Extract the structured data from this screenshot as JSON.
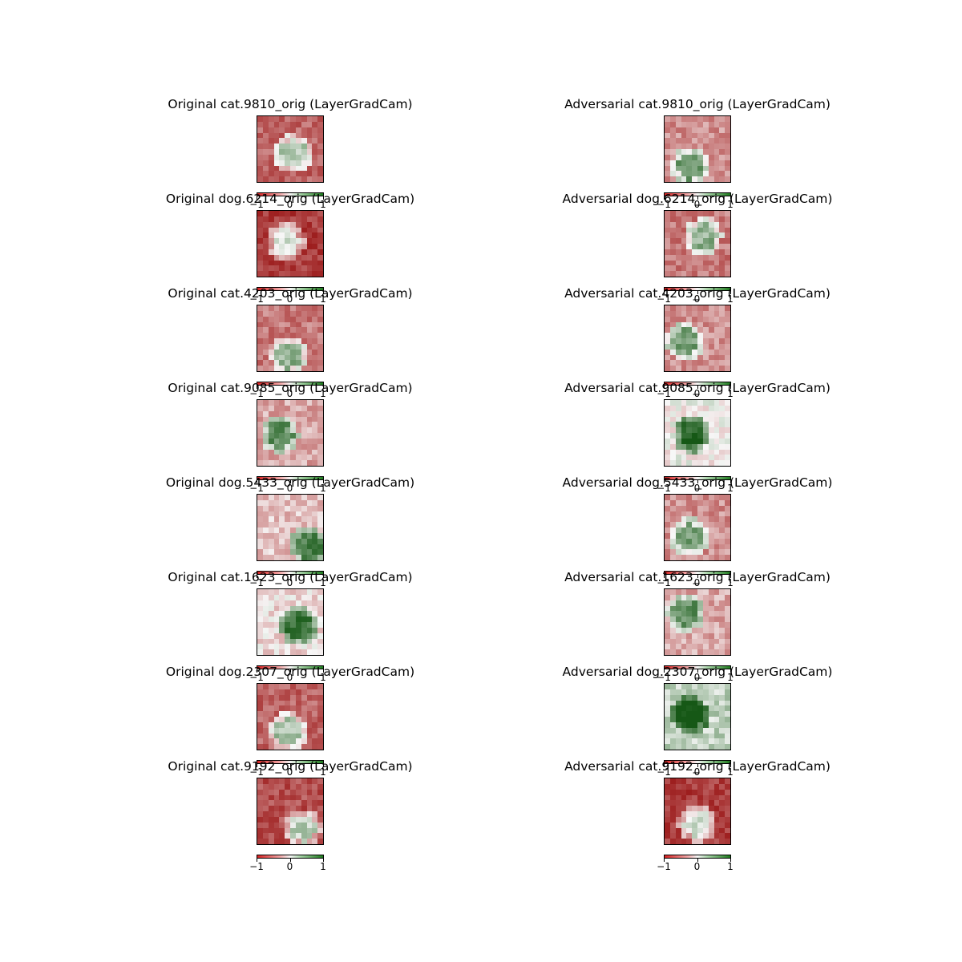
{
  "chart_data": {
    "type": "heatmap",
    "colormap": {
      "low_color": "#d62222",
      "mid_color": "#f7f7f7",
      "high_color": "#1e7a1e",
      "range": [
        -1,
        1
      ]
    },
    "colorbar_ticks": [
      "−1",
      "0",
      "1"
    ],
    "columns": [
      {
        "name": "Original",
        "titles": [
          "Original cat.9810_orig (LayerGradCam)",
          "Original dog.6214_orig (LayerGradCam)",
          "Original cat.4203_orig (LayerGradCam)",
          "Original cat.9085_orig (LayerGradCam)",
          "Original dog.5433_orig (LayerGradCam)",
          "Original cat.1623_orig (LayerGradCam)",
          "Original dog.2307_orig (LayerGradCam)",
          "Original cat.9192_orig (LayerGradCam)"
        ]
      },
      {
        "name": "Adversarial",
        "titles": [
          "Adversarial cat.9810_orig (LayerGradCam)",
          "Adversarial dog.6214_orig (LayerGradCam)",
          "Adversarial cat.4203_orig (LayerGradCam)",
          "Adversarial cat.9085_orig (LayerGradCam)",
          "Adversarial dog.5433_orig (LayerGradCam)",
          "Adversarial cat.1623_orig (LayerGradCam)",
          "Adversarial dog.2307_orig (LayerGradCam)",
          "Adversarial cat.9192_orig (LayerGradCam)"
        ]
      }
    ],
    "panels_approx_mean_value": {
      "Original": [
        -0.5,
        -0.7,
        -0.4,
        -0.2,
        -0.1,
        0.0,
        -0.5,
        -0.6
      ],
      "Adversarial": [
        -0.3,
        -0.4,
        -0.3,
        0.1,
        -0.3,
        -0.2,
        0.3,
        -0.7
      ]
    }
  }
}
